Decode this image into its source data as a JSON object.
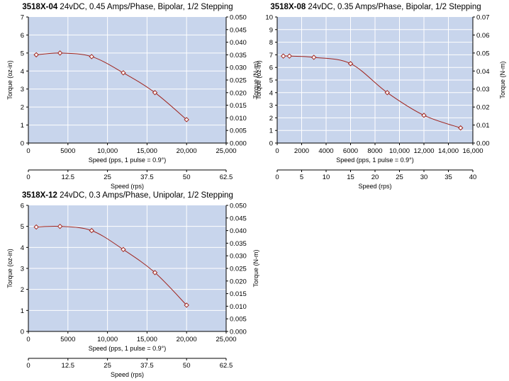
{
  "colors": {
    "plot_background": "#c8d5ec",
    "grid": "#ffffff",
    "curve": "#a0241d",
    "marker_fill": "#ffffff"
  },
  "chart_data": [
    {
      "type": "line",
      "title_bold": "3518X-04",
      "title": "24vDC, 0.45 Amps/Phase, Bipolar, 1/2 Stepping",
      "xlabel": "Speed (pps, 1 pulse = 0.9°)",
      "ylabel": "Torque (oz-in)",
      "y2label": "Torque (N-m)",
      "x2label": "Speed (rps)",
      "xlim": [
        0,
        25000
      ],
      "ylim": [
        0,
        7
      ],
      "y2lim": [
        0,
        0.05
      ],
      "xticks": [
        "0",
        "5000",
        "10,000",
        "15,000",
        "20,000",
        "25,000"
      ],
      "yticks": [
        "0",
        "1",
        "2",
        "3",
        "4",
        "5",
        "6",
        "7"
      ],
      "y2ticks": [
        "0.000",
        "0.005",
        "0.010",
        "0.015",
        "0.020",
        "0.025",
        "0.030",
        "0.035",
        "0.040",
        "0.045",
        "0.050"
      ],
      "x2ticks": [
        "0",
        "12.5",
        "25",
        "37.5",
        "50",
        "62.5"
      ],
      "grid": true,
      "x": [
        1000,
        4000,
        8000,
        12000,
        16000,
        20000
      ],
      "y": [
        4.9,
        5.0,
        4.8,
        3.9,
        2.8,
        1.3
      ]
    },
    {
      "type": "line",
      "title_bold": "3518X-08",
      "title": "24vDC, 0.35 Amps/Phase, Bipolar, 1/2 Stepping",
      "xlabel": "Speed (pps, 1 pulse = 0.9°)",
      "ylabel": "Torque (oz-in)",
      "y2label": "Torque (N-m)",
      "x2label": "Speed (rps)",
      "xlim": [
        0,
        16000
      ],
      "ylim": [
        0,
        10
      ],
      "y2lim": [
        0,
        0.07
      ],
      "xticks": [
        "0",
        "2000",
        "4000",
        "6000",
        "8000",
        "10,000",
        "12,000",
        "14,000",
        "16,000"
      ],
      "yticks": [
        "0",
        "1",
        "2",
        "3",
        "4",
        "5",
        "6",
        "7",
        "8",
        "9",
        "10"
      ],
      "y2ticks": [
        "0.00",
        "0.01",
        "0.02",
        "0.03",
        "0.04",
        "0.05",
        "0.06",
        "0.07"
      ],
      "x2ticks": [
        "0",
        "5",
        "10",
        "15",
        "20",
        "25",
        "30",
        "35",
        "40"
      ],
      "grid": true,
      "x": [
        500,
        1000,
        3000,
        6000,
        9000,
        12000,
        15000
      ],
      "y": [
        6.9,
        6.9,
        6.8,
        6.3,
        4.0,
        2.2,
        1.2
      ]
    },
    {
      "type": "line",
      "title_bold": "3518X-12",
      "title": "24vDC, 0.3 Amps/Phase, Unipolar, 1/2 Stepping",
      "xlabel": "Speed (pps, 1 pulse = 0.9°)",
      "ylabel": "Torque (oz-in)",
      "y2label": "Torque (N-m)",
      "x2label": "Speed (rps)",
      "xlim": [
        0,
        25000
      ],
      "ylim": [
        0,
        6
      ],
      "y2lim": [
        0,
        0.05
      ],
      "xticks": [
        "0",
        "5000",
        "10,000",
        "15,000",
        "20,000",
        "25,000"
      ],
      "yticks": [
        "0",
        "1",
        "2",
        "3",
        "4",
        "5",
        "6"
      ],
      "y2ticks": [
        "0.000",
        "0.005",
        "0.010",
        "0.015",
        "0.020",
        "0.025",
        "0.030",
        "0.035",
        "0.040",
        "0.045",
        "0.050"
      ],
      "x2ticks": [
        "0",
        "12.5",
        "25",
        "37.5",
        "50",
        "62.5"
      ],
      "grid": true,
      "x": [
        1000,
        4000,
        8000,
        12000,
        16000,
        20000
      ],
      "y": [
        4.97,
        5.0,
        4.8,
        3.9,
        2.8,
        1.25
      ]
    }
  ]
}
